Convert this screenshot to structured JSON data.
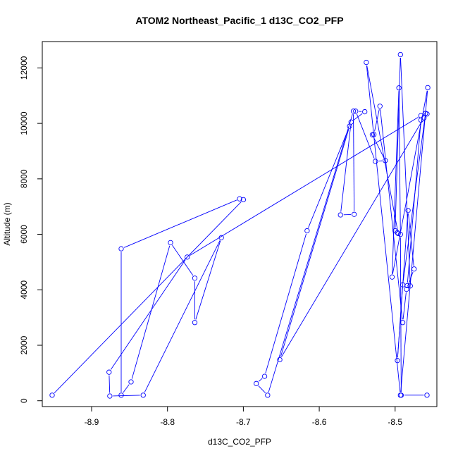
{
  "chart_data": {
    "type": "line",
    "title": "ATOM2 Northeast_Pacific_1 d13C_CO2_PFP",
    "xlabel": "d13C_CO2_PFP",
    "ylabel": "Altitude (m)",
    "xlim": [
      -8.965,
      -8.445
    ],
    "ylim": [
      -210,
      12950
    ],
    "x_ticks": [
      -8.9,
      -8.8,
      -8.7,
      -8.6,
      -8.5
    ],
    "x_tick_labels": [
      "-8.9",
      "-8.8",
      "-8.7",
      "-8.6",
      "-8.5"
    ],
    "y_ticks": [
      0,
      2000,
      4000,
      6000,
      8000,
      10000,
      12000
    ],
    "y_tick_labels": [
      "0",
      "2000",
      "4000",
      "6000",
      "8000",
      "10000",
      "12000"
    ],
    "grid": false,
    "legend": "none",
    "colors": {
      "series": "#0000ff",
      "axis": "#000000"
    },
    "series": [
      {
        "x": [
          -8.952,
          -8.7,
          -8.705,
          -8.861,
          -8.861,
          -8.848,
          -8.796,
          -8.764,
          -8.764,
          -8.729,
          -8.832,
          -8.876,
          -8.877,
          -8.774,
          -8.466,
          -8.458,
          -8.46,
          -8.49,
          -8.497,
          -8.483,
          -8.475,
          -8.485,
          -8.49,
          -8.52,
          -8.528,
          -8.53,
          -8.513,
          -8.526,
          -8.552,
          -8.54,
          -8.558,
          -8.572,
          -8.554,
          -8.555,
          -8.668,
          -8.683,
          -8.672,
          -8.616,
          -8.56,
          -8.652,
          -8.462,
          -8.466,
          -8.484,
          -8.48,
          -8.493,
          -8.5,
          -8.497,
          -8.496,
          -8.538,
          -8.493,
          -8.457,
          -8.504,
          -8.495,
          -8.493,
          -8.492,
          -8.458
        ],
        "y": [
          200,
          7250,
          7280,
          5480,
          200,
          680,
          5700,
          4420,
          2820,
          5880,
          200,
          170,
          1030,
          5180,
          10280,
          10340,
          10360,
          4180,
          1450,
          6860,
          4750,
          4020,
          2820,
          10620,
          9600,
          9590,
          8660,
          8630,
          10440,
          10420,
          10050,
          6700,
          6720,
          10440,
          200,
          620,
          880,
          6130,
          9900,
          1480,
          10200,
          10120,
          4150,
          4140,
          12480,
          6130,
          6060,
          6030,
          12200,
          200,
          11290,
          4460,
          11280,
          6000,
          200,
          200
        ]
      }
    ]
  }
}
